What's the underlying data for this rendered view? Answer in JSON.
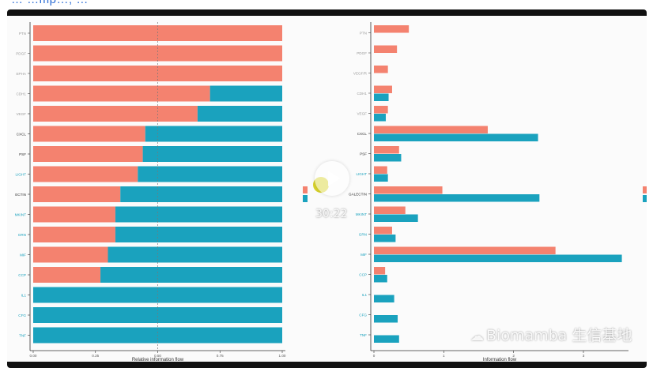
{
  "page": {
    "top_link_text": "… …mp…; …",
    "video_time": "30:22",
    "watermark": "Biomamba 生信基地",
    "watermark_icon": "wechat-icon"
  },
  "colors": {
    "series_1": "#f4826f",
    "series_2": "#1aa2be",
    "frame": "#111111",
    "panel": "#fbfbfb",
    "axis": "#333333",
    "teal_label": "#1aa2be",
    "gray_label": "#9a9a9a"
  },
  "chart_data": [
    {
      "type": "bar",
      "orientation": "horizontal",
      "stacked": true,
      "xlabel": "Relative information flow",
      "xlim": [
        0,
        1
      ],
      "x_ticks": [
        "0.00",
        "0.25",
        "0.50",
        "0.75",
        "1.00"
      ],
      "reference_line": 0.5,
      "categories": [
        "PTN",
        "PDGF",
        "EPHA",
        "CDH1",
        "VEGF",
        "CXCL",
        "PSF",
        "LIGHT",
        "ECTIN",
        "MKINT",
        "GRN",
        "MIF",
        "CCP",
        "IL1",
        "CFG",
        "TNF"
      ],
      "category_label_colors": [
        "gray",
        "gray",
        "gray",
        "gray",
        "gray",
        "dark",
        "dark",
        "teal",
        "dark",
        "teal",
        "teal",
        "teal",
        "teal",
        "teal",
        "teal",
        "teal"
      ],
      "series": [
        {
          "values": [
            1.0,
            1.0,
            1.0,
            0.71,
            0.66,
            0.45,
            0.44,
            0.42,
            0.35,
            0.33,
            0.33,
            0.3,
            0.27,
            0.0,
            0.0,
            0.0
          ]
        },
        {
          "values": [
            0.0,
            0.0,
            0.0,
            0.29,
            0.34,
            0.55,
            0.56,
            0.58,
            0.65,
            0.67,
            0.67,
            0.7,
            0.73,
            1.0,
            1.0,
            1.0
          ]
        }
      ]
    },
    {
      "type": "bar",
      "orientation": "horizontal",
      "grouped": true,
      "xlabel": "Information flow",
      "xlim": [
        0,
        3.6
      ],
      "x_ticks": [
        "0",
        "1",
        "2",
        "3"
      ],
      "categories": [
        "PTN",
        "PDGF",
        "VEGF/R",
        "CDH1",
        "VEGF",
        "CXCL",
        "PSF",
        "LIGHT",
        "GALECTIN",
        "MKINT",
        "GRN",
        "MIF",
        "CCP",
        "IL1",
        "CFG",
        "TNF"
      ],
      "category_label_colors": [
        "gray",
        "gray",
        "gray",
        "gray",
        "gray",
        "dark",
        "dark",
        "teal",
        "dark",
        "teal",
        "teal",
        "teal",
        "teal",
        "teal",
        "teal",
        "teal"
      ],
      "series": [
        {
          "values": [
            0.5,
            0.33,
            0.2,
            0.26,
            0.2,
            1.63,
            0.36,
            0.19,
            0.98,
            0.45,
            0.26,
            2.6,
            0.16,
            0,
            0,
            0
          ]
        },
        {
          "values": [
            0,
            0,
            0,
            0.21,
            0.17,
            2.35,
            0.39,
            0.2,
            2.37,
            0.63,
            0.31,
            3.55,
            0.19,
            0.29,
            0.34,
            0.36
          ]
        }
      ]
    }
  ]
}
